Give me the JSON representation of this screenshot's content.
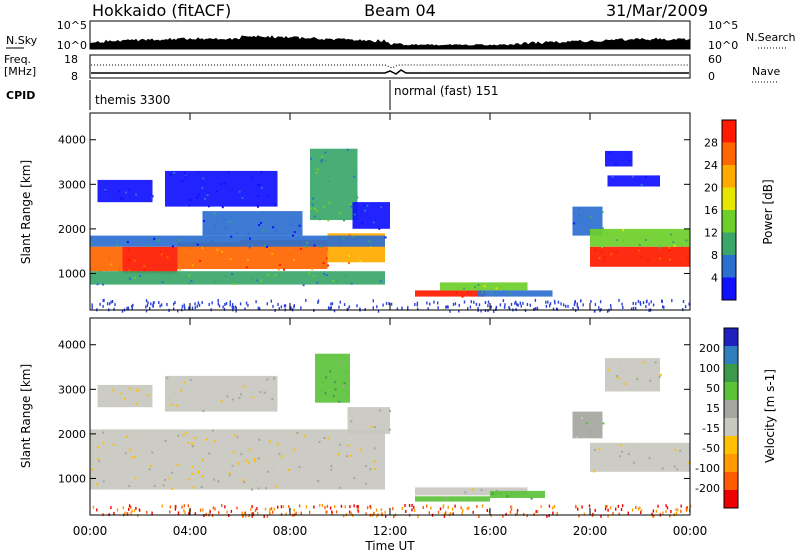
{
  "header": {
    "station": "Hokkaido (fitACF)",
    "beam": "Beam 04",
    "date": "31/Mar/2009"
  },
  "aux_panels": {
    "nsky_label": "N.Sky",
    "nsearch_label": "N.Search",
    "nsky_ticks": [
      "10^5",
      "10^0"
    ],
    "nsearch_ticks": [
      "10^5",
      "10^0"
    ],
    "freq_label_1": "Freq.",
    "freq_label_2": "[MHz]",
    "freq_ticks": [
      "18",
      "8"
    ],
    "nave_label": "Nave",
    "nave_ticks": [
      "60",
      "0"
    ],
    "cpid_label": "CPID",
    "cpid_segments": [
      {
        "label": "themis 3300",
        "start_hour": 0,
        "end_hour": 12
      },
      {
        "label": "normal (fast) 151",
        "start_hour": 12,
        "end_hour": 24
      }
    ]
  },
  "colors": {
    "power_scale": [
      "#1010ff",
      "#2d6fd0",
      "#3aa66a",
      "#6ccf2a",
      "#e6e600",
      "#ffaa00",
      "#ff6600",
      "#ff1a00"
    ],
    "velocity_scale": [
      "#ee0000",
      "#ff5a00",
      "#ff9a00",
      "#ffc000",
      "#c8c8c0",
      "#a6a6a0",
      "#5cc23a",
      "#3d9a4a",
      "#2f7fbf",
      "#2020bf"
    ],
    "ground_scatter": "#bfbfb8"
  },
  "chart_data": [
    {
      "type": "heatmap",
      "name": "power",
      "ylabel": "Slant Range [km]",
      "colorbar_label": "Power [dB]",
      "colorbar_ticks": [
        "28",
        "24",
        "20",
        "16",
        "12",
        "8",
        "4"
      ],
      "y_ticks": [
        "4000",
        "3000",
        "2000",
        "1000"
      ],
      "ylim": [
        180,
        4600
      ],
      "xlim": [
        0,
        24
      ],
      "regions": [
        {
          "t0": 0.0,
          "t1": 1.3,
          "r0": 1050,
          "r1": 1600,
          "level": 6
        },
        {
          "t0": 1.3,
          "t1": 3.5,
          "r0": 1000,
          "r1": 1600,
          "level": 7
        },
        {
          "t0": 3.5,
          "t1": 6.0,
          "r0": 1100,
          "r1": 1700,
          "level": 6
        },
        {
          "t0": 6.0,
          "t1": 9.5,
          "r0": 1100,
          "r1": 1750,
          "level": 6
        },
        {
          "t0": 9.5,
          "t1": 11.8,
          "r0": 1250,
          "r1": 1900,
          "level": 5
        },
        {
          "t0": 0.0,
          "t1": 11.8,
          "r0": 750,
          "r1": 1050,
          "level": 2
        },
        {
          "t0": 0.0,
          "t1": 11.8,
          "r0": 1600,
          "r1": 1850,
          "level": 1
        },
        {
          "t0": 0.3,
          "t1": 2.5,
          "r0": 2600,
          "r1": 3100,
          "level": 0
        },
        {
          "t0": 3.0,
          "t1": 7.5,
          "r0": 2500,
          "r1": 3300,
          "level": 0
        },
        {
          "t0": 8.8,
          "t1": 10.7,
          "r0": 2200,
          "r1": 3800,
          "level": 2
        },
        {
          "t0": 4.5,
          "t1": 8.5,
          "r0": 1850,
          "r1": 2400,
          "level": 1
        },
        {
          "t0": 10.5,
          "t1": 12.0,
          "r0": 2000,
          "r1": 2600,
          "level": 0
        },
        {
          "t0": 13.0,
          "t1": 15.8,
          "r0": 480,
          "r1": 620,
          "level": 7
        },
        {
          "t0": 14.0,
          "t1": 17.5,
          "r0": 620,
          "r1": 800,
          "level": 3
        },
        {
          "t0": 15.5,
          "t1": 18.5,
          "r0": 480,
          "r1": 620,
          "level": 1
        },
        {
          "t0": 19.3,
          "t1": 20.5,
          "r0": 1850,
          "r1": 2500,
          "level": 1
        },
        {
          "t0": 20.0,
          "t1": 24.0,
          "r0": 1150,
          "r1": 1600,
          "level": 7
        },
        {
          "t0": 20.0,
          "t1": 24.0,
          "r0": 1600,
          "r1": 2000,
          "level": 3
        },
        {
          "t0": 20.6,
          "t1": 21.7,
          "r0": 3400,
          "r1": 3750,
          "level": 0
        },
        {
          "t0": 20.7,
          "t1": 22.8,
          "r0": 2950,
          "r1": 3200,
          "level": 0
        }
      ]
    },
    {
      "type": "heatmap",
      "name": "velocity",
      "ylabel": "Slant Range [km]",
      "colorbar_label": "Velocity [m s-1]",
      "colorbar_ticks": [
        "200",
        "100",
        "50",
        "15",
        "-15",
        "-50",
        "-100",
        "-200"
      ],
      "y_ticks": [
        "4000",
        "3000",
        "2000",
        "1000"
      ],
      "ylim": [
        180,
        4600
      ],
      "xlim": [
        0,
        24
      ],
      "regions": [
        {
          "t0": 0.0,
          "t1": 11.8,
          "r0": 750,
          "r1": 2100,
          "level": 4
        },
        {
          "t0": 0.3,
          "t1": 2.5,
          "r0": 2600,
          "r1": 3100,
          "level": 4
        },
        {
          "t0": 3.0,
          "t1": 7.5,
          "r0": 2500,
          "r1": 3300,
          "level": 4
        },
        {
          "t0": 9.0,
          "t1": 10.4,
          "r0": 2700,
          "r1": 3800,
          "level": 6
        },
        {
          "t0": 10.3,
          "t1": 12.0,
          "r0": 2000,
          "r1": 2600,
          "level": 4
        },
        {
          "t0": 13.0,
          "t1": 17.5,
          "r0": 620,
          "r1": 800,
          "level": 4
        },
        {
          "t0": 13.0,
          "t1": 16.0,
          "r0": 480,
          "r1": 600,
          "level": 6
        },
        {
          "t0": 16.0,
          "t1": 18.2,
          "r0": 560,
          "r1": 720,
          "level": 6
        },
        {
          "t0": 19.3,
          "t1": 20.5,
          "r0": 1900,
          "r1": 2500,
          "level": 5
        },
        {
          "t0": 20.0,
          "t1": 24.0,
          "r0": 1150,
          "r1": 1800,
          "level": 4
        },
        {
          "t0": 20.6,
          "t1": 22.8,
          "r0": 2950,
          "r1": 3700,
          "level": 4
        }
      ]
    }
  ],
  "x_axis": {
    "label": "Time UT",
    "ticks": [
      "00:00",
      "04:00",
      "08:00",
      "12:00",
      "16:00",
      "20:00",
      "00:00"
    ],
    "tick_hours": [
      0,
      4,
      8,
      12,
      16,
      20,
      24
    ]
  }
}
